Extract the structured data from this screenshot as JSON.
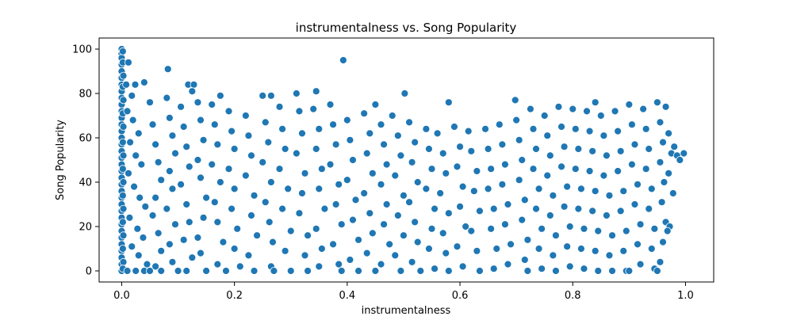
{
  "chart_data": {
    "type": "scatter",
    "title": "instrumentalness vs. Song Popularity",
    "xlabel": "instrumentalness",
    "ylabel": "Song Popularity",
    "xlim": [
      -0.04,
      1.05
    ],
    "ylim": [
      -5,
      105
    ],
    "x_ticks": [
      0.0,
      0.2,
      0.4,
      0.6,
      0.8,
      1.0
    ],
    "x_tick_labels": [
      "0.0",
      "0.2",
      "0.4",
      "0.6",
      "0.8",
      "1.0"
    ],
    "y_ticks": [
      0,
      20,
      40,
      60,
      80,
      100
    ],
    "y_tick_labels": [
      "0",
      "20",
      "40",
      "60",
      "80",
      "100"
    ],
    "grid": false,
    "legend": "none",
    "marker_color": "#1f77b4",
    "marker_edge_color": "#ffffff",
    "points": [
      [
        0.0,
        100
      ],
      [
        0.0,
        98
      ],
      [
        0.0,
        96
      ],
      [
        0.0,
        93
      ],
      [
        0.0,
        90
      ],
      [
        0.0,
        87
      ],
      [
        0.0,
        84
      ],
      [
        0.0,
        81
      ],
      [
        0.0,
        78
      ],
      [
        0.0,
        75
      ],
      [
        0.0,
        72
      ],
      [
        0.0,
        69
      ],
      [
        0.0,
        66
      ],
      [
        0.0,
        63
      ],
      [
        0.0,
        60
      ],
      [
        0.0,
        57
      ],
      [
        0.0,
        54
      ],
      [
        0.0,
        51
      ],
      [
        0.0,
        48
      ],
      [
        0.0,
        45
      ],
      [
        0.0,
        42
      ],
      [
        0.0,
        39
      ],
      [
        0.0,
        36
      ],
      [
        0.0,
        33
      ],
      [
        0.0,
        30
      ],
      [
        0.0,
        27
      ],
      [
        0.0,
        24
      ],
      [
        0.0,
        21
      ],
      [
        0.0,
        18
      ],
      [
        0.0,
        15
      ],
      [
        0.0,
        12
      ],
      [
        0.0,
        9
      ],
      [
        0.0,
        6
      ],
      [
        0.0,
        3
      ],
      [
        0.0,
        0
      ],
      [
        0.002,
        99
      ],
      [
        0.002,
        94
      ],
      [
        0.003,
        88
      ],
      [
        0.002,
        83
      ],
      [
        0.003,
        77
      ],
      [
        0.002,
        71
      ],
      [
        0.003,
        65
      ],
      [
        0.002,
        58
      ],
      [
        0.003,
        52
      ],
      [
        0.002,
        46
      ],
      [
        0.003,
        40
      ],
      [
        0.002,
        34
      ],
      [
        0.003,
        28
      ],
      [
        0.002,
        22
      ],
      [
        0.003,
        16
      ],
      [
        0.002,
        10
      ],
      [
        0.003,
        4
      ],
      [
        0.002,
        1
      ],
      [
        0.012,
        94
      ],
      [
        0.008,
        84
      ],
      [
        0.024,
        84
      ],
      [
        0.04,
        85
      ],
      [
        0.018,
        79
      ],
      [
        0.01,
        72
      ],
      [
        0.02,
        68
      ],
      [
        0.03,
        62
      ],
      [
        0.015,
        58
      ],
      [
        0.025,
        52
      ],
      [
        0.035,
        48
      ],
      [
        0.012,
        44
      ],
      [
        0.022,
        38
      ],
      [
        0.032,
        33
      ],
      [
        0.042,
        29
      ],
      [
        0.014,
        24
      ],
      [
        0.028,
        19
      ],
      [
        0.038,
        15
      ],
      [
        0.018,
        11
      ],
      [
        0.03,
        7
      ],
      [
        0.045,
        3
      ],
      [
        0.01,
        0
      ],
      [
        0.025,
        0
      ],
      [
        0.04,
        0
      ],
      [
        0.05,
        76
      ],
      [
        0.055,
        66
      ],
      [
        0.06,
        57
      ],
      [
        0.065,
        49
      ],
      [
        0.07,
        41
      ],
      [
        0.06,
        33
      ],
      [
        0.055,
        25
      ],
      [
        0.065,
        17
      ],
      [
        0.07,
        9
      ],
      [
        0.06,
        2
      ],
      [
        0.05,
        0
      ],
      [
        0.07,
        0
      ],
      [
        0.082,
        91
      ],
      [
        0.08,
        78
      ],
      [
        0.085,
        69
      ],
      [
        0.09,
        61
      ],
      [
        0.095,
        53
      ],
      [
        0.085,
        45
      ],
      [
        0.09,
        37
      ],
      [
        0.08,
        28
      ],
      [
        0.095,
        21
      ],
      [
        0.085,
        12
      ],
      [
        0.09,
        4
      ],
      [
        0.1,
        0
      ],
      [
        0.105,
        74
      ],
      [
        0.11,
        65
      ],
      [
        0.115,
        56
      ],
      [
        0.12,
        47
      ],
      [
        0.105,
        39
      ],
      [
        0.115,
        30
      ],
      [
        0.12,
        22
      ],
      [
        0.11,
        14
      ],
      [
        0.125,
        6
      ],
      [
        0.115,
        0
      ],
      [
        0.118,
        84
      ],
      [
        0.128,
        84
      ],
      [
        0.125,
        81
      ],
      [
        0.135,
        76
      ],
      [
        0.14,
        68
      ],
      [
        0.145,
        59
      ],
      [
        0.135,
        50
      ],
      [
        0.14,
        42
      ],
      [
        0.15,
        33
      ],
      [
        0.145,
        24
      ],
      [
        0.135,
        15
      ],
      [
        0.14,
        8
      ],
      [
        0.15,
        0
      ],
      [
        0.16,
        75
      ],
      [
        0.165,
        66
      ],
      [
        0.17,
        57
      ],
      [
        0.16,
        48
      ],
      [
        0.175,
        40
      ],
      [
        0.165,
        31
      ],
      [
        0.17,
        22
      ],
      [
        0.18,
        13
      ],
      [
        0.17,
        3
      ],
      [
        0.185,
        0
      ],
      [
        0.175,
        79
      ],
      [
        0.19,
        72
      ],
      [
        0.195,
        63
      ],
      [
        0.2,
        55
      ],
      [
        0.19,
        46
      ],
      [
        0.2,
        37
      ],
      [
        0.195,
        28
      ],
      [
        0.205,
        19
      ],
      [
        0.2,
        10
      ],
      [
        0.21,
        2
      ],
      [
        0.22,
        70
      ],
      [
        0.225,
        61
      ],
      [
        0.23,
        52
      ],
      [
        0.22,
        43
      ],
      [
        0.235,
        34
      ],
      [
        0.23,
        25
      ],
      [
        0.24,
        16
      ],
      [
        0.225,
        7
      ],
      [
        0.235,
        0
      ],
      [
        0.25,
        79
      ],
      [
        0.255,
        67
      ],
      [
        0.26,
        58
      ],
      [
        0.25,
        49
      ],
      [
        0.265,
        40
      ],
      [
        0.255,
        31
      ],
      [
        0.262,
        22
      ],
      [
        0.268,
        13
      ],
      [
        0.265,
        2
      ],
      [
        0.27,
        0
      ],
      [
        0.265,
        79
      ],
      [
        0.28,
        74
      ],
      [
        0.285,
        64
      ],
      [
        0.29,
        55
      ],
      [
        0.28,
        46
      ],
      [
        0.295,
        37
      ],
      [
        0.285,
        28
      ],
      [
        0.3,
        18
      ],
      [
        0.29,
        9
      ],
      [
        0.3,
        0
      ],
      [
        0.31,
        80
      ],
      [
        0.315,
        72
      ],
      [
        0.32,
        62
      ],
      [
        0.31,
        53
      ],
      [
        0.325,
        44
      ],
      [
        0.32,
        35
      ],
      [
        0.315,
        26
      ],
      [
        0.33,
        16
      ],
      [
        0.325,
        7
      ],
      [
        0.33,
        0
      ],
      [
        0.345,
        81
      ],
      [
        0.34,
        73
      ],
      [
        0.35,
        64
      ],
      [
        0.345,
        55
      ],
      [
        0.355,
        46
      ],
      [
        0.35,
        37
      ],
      [
        0.36,
        28
      ],
      [
        0.345,
        19
      ],
      [
        0.355,
        10
      ],
      [
        0.35,
        2
      ],
      [
        0.37,
        75
      ],
      [
        0.375,
        66
      ],
      [
        0.38,
        57
      ],
      [
        0.37,
        48
      ],
      [
        0.385,
        39
      ],
      [
        0.38,
        30
      ],
      [
        0.39,
        21
      ],
      [
        0.375,
        12
      ],
      [
        0.385,
        3
      ],
      [
        0.39,
        0
      ],
      [
        0.393,
        95
      ],
      [
        0.4,
        68
      ],
      [
        0.405,
        59
      ],
      [
        0.41,
        50
      ],
      [
        0.4,
        41
      ],
      [
        0.415,
        32
      ],
      [
        0.41,
        23
      ],
      [
        0.42,
        14
      ],
      [
        0.405,
        5
      ],
      [
        0.42,
        0
      ],
      [
        0.43,
        71
      ],
      [
        0.44,
        62
      ],
      [
        0.435,
        53
      ],
      [
        0.445,
        44
      ],
      [
        0.43,
        35
      ],
      [
        0.44,
        26
      ],
      [
        0.445,
        17
      ],
      [
        0.435,
        8
      ],
      [
        0.45,
        0
      ],
      [
        0.45,
        75
      ],
      [
        0.46,
        66
      ],
      [
        0.465,
        57
      ],
      [
        0.47,
        48
      ],
      [
        0.46,
        39
      ],
      [
        0.47,
        30
      ],
      [
        0.465,
        21
      ],
      [
        0.475,
        12
      ],
      [
        0.46,
        3
      ],
      [
        0.48,
        70
      ],
      [
        0.49,
        61
      ],
      [
        0.495,
        52
      ],
      [
        0.485,
        43
      ],
      [
        0.5,
        34
      ],
      [
        0.49,
        25
      ],
      [
        0.5,
        16
      ],
      [
        0.485,
        7
      ],
      [
        0.495,
        0
      ],
      [
        0.502,
        80
      ],
      [
        0.51,
        67
      ],
      [
        0.52,
        58
      ],
      [
        0.515,
        49
      ],
      [
        0.525,
        40
      ],
      [
        0.51,
        31
      ],
      [
        0.52,
        22
      ],
      [
        0.525,
        13
      ],
      [
        0.515,
        4
      ],
      [
        0.53,
        0
      ],
      [
        0.54,
        64
      ],
      [
        0.545,
        55
      ],
      [
        0.55,
        46
      ],
      [
        0.54,
        37
      ],
      [
        0.555,
        28
      ],
      [
        0.55,
        19
      ],
      [
        0.545,
        10
      ],
      [
        0.555,
        1
      ],
      [
        0.56,
        62
      ],
      [
        0.57,
        53
      ],
      [
        0.575,
        44
      ],
      [
        0.565,
        35
      ],
      [
        0.58,
        26
      ],
      [
        0.57,
        17
      ],
      [
        0.575,
        8
      ],
      [
        0.58,
        0
      ],
      [
        0.58,
        76
      ],
      [
        0.59,
        65
      ],
      [
        0.6,
        56
      ],
      [
        0.595,
        47
      ],
      [
        0.605,
        38
      ],
      [
        0.6,
        29
      ],
      [
        0.61,
        20
      ],
      [
        0.595,
        11
      ],
      [
        0.605,
        2
      ],
      [
        0.615,
        63
      ],
      [
        0.62,
        54
      ],
      [
        0.63,
        45
      ],
      [
        0.625,
        36
      ],
      [
        0.635,
        27
      ],
      [
        0.62,
        18
      ],
      [
        0.63,
        9
      ],
      [
        0.635,
        0
      ],
      [
        0.645,
        64
      ],
      [
        0.65,
        55
      ],
      [
        0.655,
        46
      ],
      [
        0.65,
        37
      ],
      [
        0.66,
        28
      ],
      [
        0.655,
        19
      ],
      [
        0.665,
        10
      ],
      [
        0.66,
        1
      ],
      [
        0.67,
        66
      ],
      [
        0.675,
        57
      ],
      [
        0.68,
        48
      ],
      [
        0.675,
        39
      ],
      [
        0.685,
        30
      ],
      [
        0.68,
        21
      ],
      [
        0.69,
        12
      ],
      [
        0.685,
        3
      ],
      [
        0.698,
        77
      ],
      [
        0.7,
        68
      ],
      [
        0.705,
        59
      ],
      [
        0.71,
        50
      ],
      [
        0.705,
        41
      ],
      [
        0.715,
        32
      ],
      [
        0.71,
        23
      ],
      [
        0.72,
        14
      ],
      [
        0.715,
        5
      ],
      [
        0.72,
        0
      ],
      [
        0.725,
        73
      ],
      [
        0.73,
        64
      ],
      [
        0.735,
        55
      ],
      [
        0.73,
        46
      ],
      [
        0.74,
        37
      ],
      [
        0.735,
        28
      ],
      [
        0.745,
        19
      ],
      [
        0.74,
        10
      ],
      [
        0.745,
        1
      ],
      [
        0.75,
        70
      ],
      [
        0.755,
        61
      ],
      [
        0.76,
        52
      ],
      [
        0.755,
        43
      ],
      [
        0.765,
        34
      ],
      [
        0.76,
        25
      ],
      [
        0.77,
        16
      ],
      [
        0.765,
        7
      ],
      [
        0.77,
        0
      ],
      [
        0.775,
        74
      ],
      [
        0.78,
        65
      ],
      [
        0.785,
        56
      ],
      [
        0.78,
        47
      ],
      [
        0.79,
        38
      ],
      [
        0.785,
        29
      ],
      [
        0.795,
        20
      ],
      [
        0.79,
        11
      ],
      [
        0.795,
        2
      ],
      [
        0.8,
        73
      ],
      [
        0.805,
        64
      ],
      [
        0.81,
        55
      ],
      [
        0.805,
        46
      ],
      [
        0.815,
        37
      ],
      [
        0.81,
        28
      ],
      [
        0.82,
        19
      ],
      [
        0.815,
        10
      ],
      [
        0.82,
        1
      ],
      [
        0.825,
        72
      ],
      [
        0.83,
        63
      ],
      [
        0.835,
        54
      ],
      [
        0.83,
        45
      ],
      [
        0.84,
        36
      ],
      [
        0.835,
        27
      ],
      [
        0.845,
        18
      ],
      [
        0.84,
        9
      ],
      [
        0.845,
        0
      ],
      [
        0.84,
        76
      ],
      [
        0.85,
        70
      ],
      [
        0.855,
        61
      ],
      [
        0.86,
        52
      ],
      [
        0.855,
        43
      ],
      [
        0.865,
        34
      ],
      [
        0.86,
        25
      ],
      [
        0.87,
        16
      ],
      [
        0.865,
        7
      ],
      [
        0.87,
        0
      ],
      [
        0.875,
        72
      ],
      [
        0.88,
        63
      ],
      [
        0.885,
        54
      ],
      [
        0.88,
        45
      ],
      [
        0.89,
        36
      ],
      [
        0.885,
        27
      ],
      [
        0.895,
        18
      ],
      [
        0.89,
        9
      ],
      [
        0.895,
        0
      ],
      [
        0.9,
        75
      ],
      [
        0.905,
        66
      ],
      [
        0.91,
        57
      ],
      [
        0.905,
        48
      ],
      [
        0.915,
        39
      ],
      [
        0.91,
        30
      ],
      [
        0.92,
        21
      ],
      [
        0.915,
        12
      ],
      [
        0.92,
        3
      ],
      [
        0.9,
        0
      ],
      [
        0.925,
        73
      ],
      [
        0.93,
        64
      ],
      [
        0.935,
        55
      ],
      [
        0.93,
        46
      ],
      [
        0.94,
        37
      ],
      [
        0.935,
        28
      ],
      [
        0.945,
        19
      ],
      [
        0.94,
        10
      ],
      [
        0.945,
        1
      ],
      [
        0.95,
        76
      ],
      [
        0.955,
        67
      ],
      [
        0.96,
        58
      ],
      [
        0.955,
        49
      ],
      [
        0.962,
        40
      ],
      [
        0.958,
        31
      ],
      [
        0.965,
        22
      ],
      [
        0.96,
        13
      ],
      [
        0.955,
        4
      ],
      [
        0.95,
        0
      ],
      [
        0.965,
        74
      ],
      [
        0.97,
        62
      ],
      [
        0.975,
        53
      ],
      [
        0.97,
        44
      ],
      [
        0.978,
        35
      ],
      [
        0.972,
        20
      ],
      [
        0.968,
        18
      ],
      [
        0.98,
        56
      ],
      [
        0.985,
        52
      ],
      [
        0.99,
        50
      ],
      [
        0.997,
        53
      ]
    ]
  }
}
